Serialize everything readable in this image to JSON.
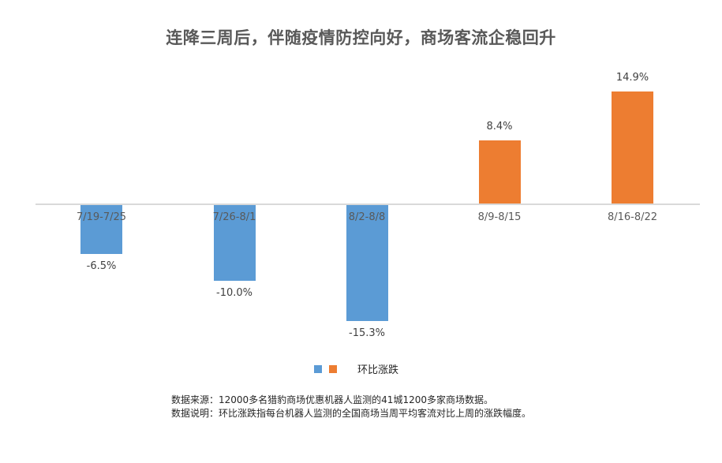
{
  "chart_data": {
    "type": "bar",
    "title": "连降三周后，伴随疫情防控向好，商场客流企稳回升",
    "categories": [
      "7/19-7/25",
      "7/26-8/1",
      "8/2-8/8",
      "8/9-8/15",
      "8/16-8/22"
    ],
    "series": [
      {
        "name": "环比涨跌",
        "values": [
          -6.5,
          -10.0,
          -15.3,
          8.4,
          14.9
        ],
        "unit": "%"
      }
    ],
    "value_labels": [
      "-6.5%",
      "-10.0%",
      "-15.3%",
      "8.4%",
      "14.9%"
    ],
    "colors": {
      "negative": "#5b9bd5",
      "positive": "#ed7d31"
    },
    "xlabel": "",
    "ylabel": "",
    "grid": false,
    "legend_position": "bottom",
    "legend_entries": [
      "环比涨跌"
    ]
  },
  "title": "连降三周后，伴随疫情防控向好，商场客流企稳回升",
  "legend": {
    "label": "环比涨跌"
  },
  "notes": {
    "source": "数据来源：12000多名猎豹商场优惠机器人监测的41城1200多家商场数据。",
    "explanation": "数据说明：环比涨跌指每台机器人监测的全国商场当周平均客流对比上周的涨跌幅度。"
  }
}
